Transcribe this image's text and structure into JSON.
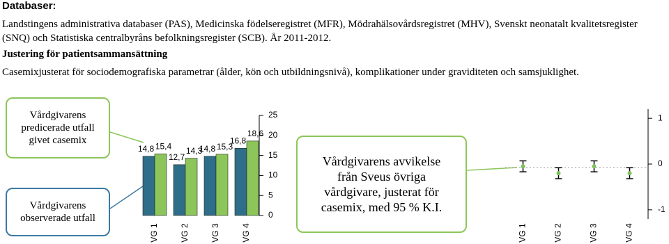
{
  "header": {
    "title": "Databaser:"
  },
  "sources": "Landstingens administrativa databaser (PAS), Medicinska födelseregistret (MFR), Mödrahälsovårdsregistret (MHV), Svenskt neonatalt kvalitetsregister (SNQ) och Statistiska centralbyråns befolkningsregister (SCB). År 2011-2012.",
  "adjustment": {
    "heading": "Justering för patientsammansättning",
    "text": "Casemixjusterat för sociodemografiska parametrar (ålder, kön och utbildningsnivå), komplikationer under graviditeten och samsjuklighet."
  },
  "chart_data": [
    {
      "type": "bar",
      "categories": [
        "VG 1",
        "VG 2",
        "VG 3",
        "VG 4"
      ],
      "series": [
        {
          "name": "Vårdgivarens observerade utfall",
          "color": "#2f6e88",
          "values": [
            14.8,
            12.7,
            14.8,
            16.8
          ],
          "value_labels": [
            "14,8",
            "12,7",
            "14,8",
            "16,8"
          ]
        },
        {
          "name": "Vårdgivarens predicerade utfall givet casemix",
          "color": "#8cc65a",
          "values": [
            15.4,
            14.3,
            15.3,
            18.6
          ],
          "value_labels": [
            "15,4",
            "14,3",
            "15,3",
            "18,6"
          ]
        }
      ],
      "ylim": [
        0,
        25
      ],
      "yticks": [
        0,
        5,
        10,
        15,
        20,
        25
      ]
    },
    {
      "type": "errorbar",
      "categories": [
        "VG 1",
        "VG 2",
        "VG 3",
        "VG 4"
      ],
      "series": [
        {
          "name": "Vårdgivarens avvikelse från Sveus övriga vårdgivare, justerat för casemix, med 95 % K.I.",
          "color": "#7dc15a",
          "values": [
            -0.05,
            -0.2,
            -0.05,
            -0.2
          ],
          "errors": [
            0.12,
            0.12,
            0.12,
            0.12
          ]
        }
      ],
      "ylim": [
        -1.2,
        1.2
      ],
      "yticks": [
        1,
        0,
        -1
      ]
    }
  ]
}
